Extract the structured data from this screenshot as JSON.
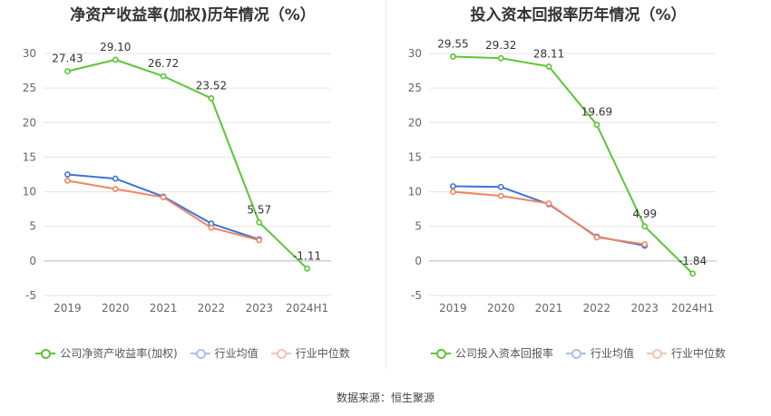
{
  "chart_data": [
    {
      "type": "line",
      "title": "净资产收益率(加权)历年情况（%）",
      "categories": [
        "2019",
        "2020",
        "2021",
        "2022",
        "2023",
        "2024H1"
      ],
      "ylim": [
        -5,
        30
      ],
      "yticks": [
        -5,
        0,
        5,
        10,
        15,
        20,
        25,
        30
      ],
      "grid": true,
      "legend_position": "bottom",
      "series": [
        {
          "name": "公司净资产收益率(加权)",
          "color": "#5cc537",
          "values": [
            27.43,
            29.1,
            26.72,
            23.52,
            5.57,
            -1.11
          ],
          "labels": [
            "27.43",
            "29.10",
            "26.72",
            "23.52",
            "5.57",
            "-1.11"
          ]
        },
        {
          "name": "行业均值",
          "color": "#3f72d6",
          "values": [
            12.5,
            11.9,
            9.3,
            5.4,
            3.1,
            null
          ]
        },
        {
          "name": "行业中位数",
          "color": "#ee8662",
          "values": [
            11.6,
            10.4,
            9.2,
            4.8,
            3.0,
            null
          ]
        }
      ]
    },
    {
      "type": "line",
      "title": "投入资本回报率历年情况（%）",
      "categories": [
        "2019",
        "2020",
        "2021",
        "2022",
        "2023",
        "2024H1"
      ],
      "ylim": [
        -5,
        30
      ],
      "yticks": [
        -5,
        0,
        5,
        10,
        15,
        20,
        25,
        30
      ],
      "grid": true,
      "legend_position": "bottom",
      "series": [
        {
          "name": "公司投入资本回报率",
          "color": "#5cc537",
          "values": [
            29.55,
            29.32,
            28.11,
            19.69,
            4.99,
            -1.84
          ],
          "labels": [
            "29.55",
            "29.32",
            "28.11",
            "19.69",
            "4.99",
            "-1.84"
          ]
        },
        {
          "name": "行业均值",
          "color": "#3f72d6",
          "values": [
            10.8,
            10.7,
            8.2,
            3.5,
            2.2,
            null
          ]
        },
        {
          "name": "行业中位数",
          "color": "#ee8662",
          "values": [
            10.0,
            9.4,
            8.3,
            3.4,
            2.4,
            null
          ]
        }
      ]
    }
  ],
  "legend_colors": {
    "line": "#5cc537",
    "avg": "#a9c1ee",
    "median": "#f4c4b2"
  },
  "footer": {
    "source": "数据来源：恒生聚源"
  }
}
